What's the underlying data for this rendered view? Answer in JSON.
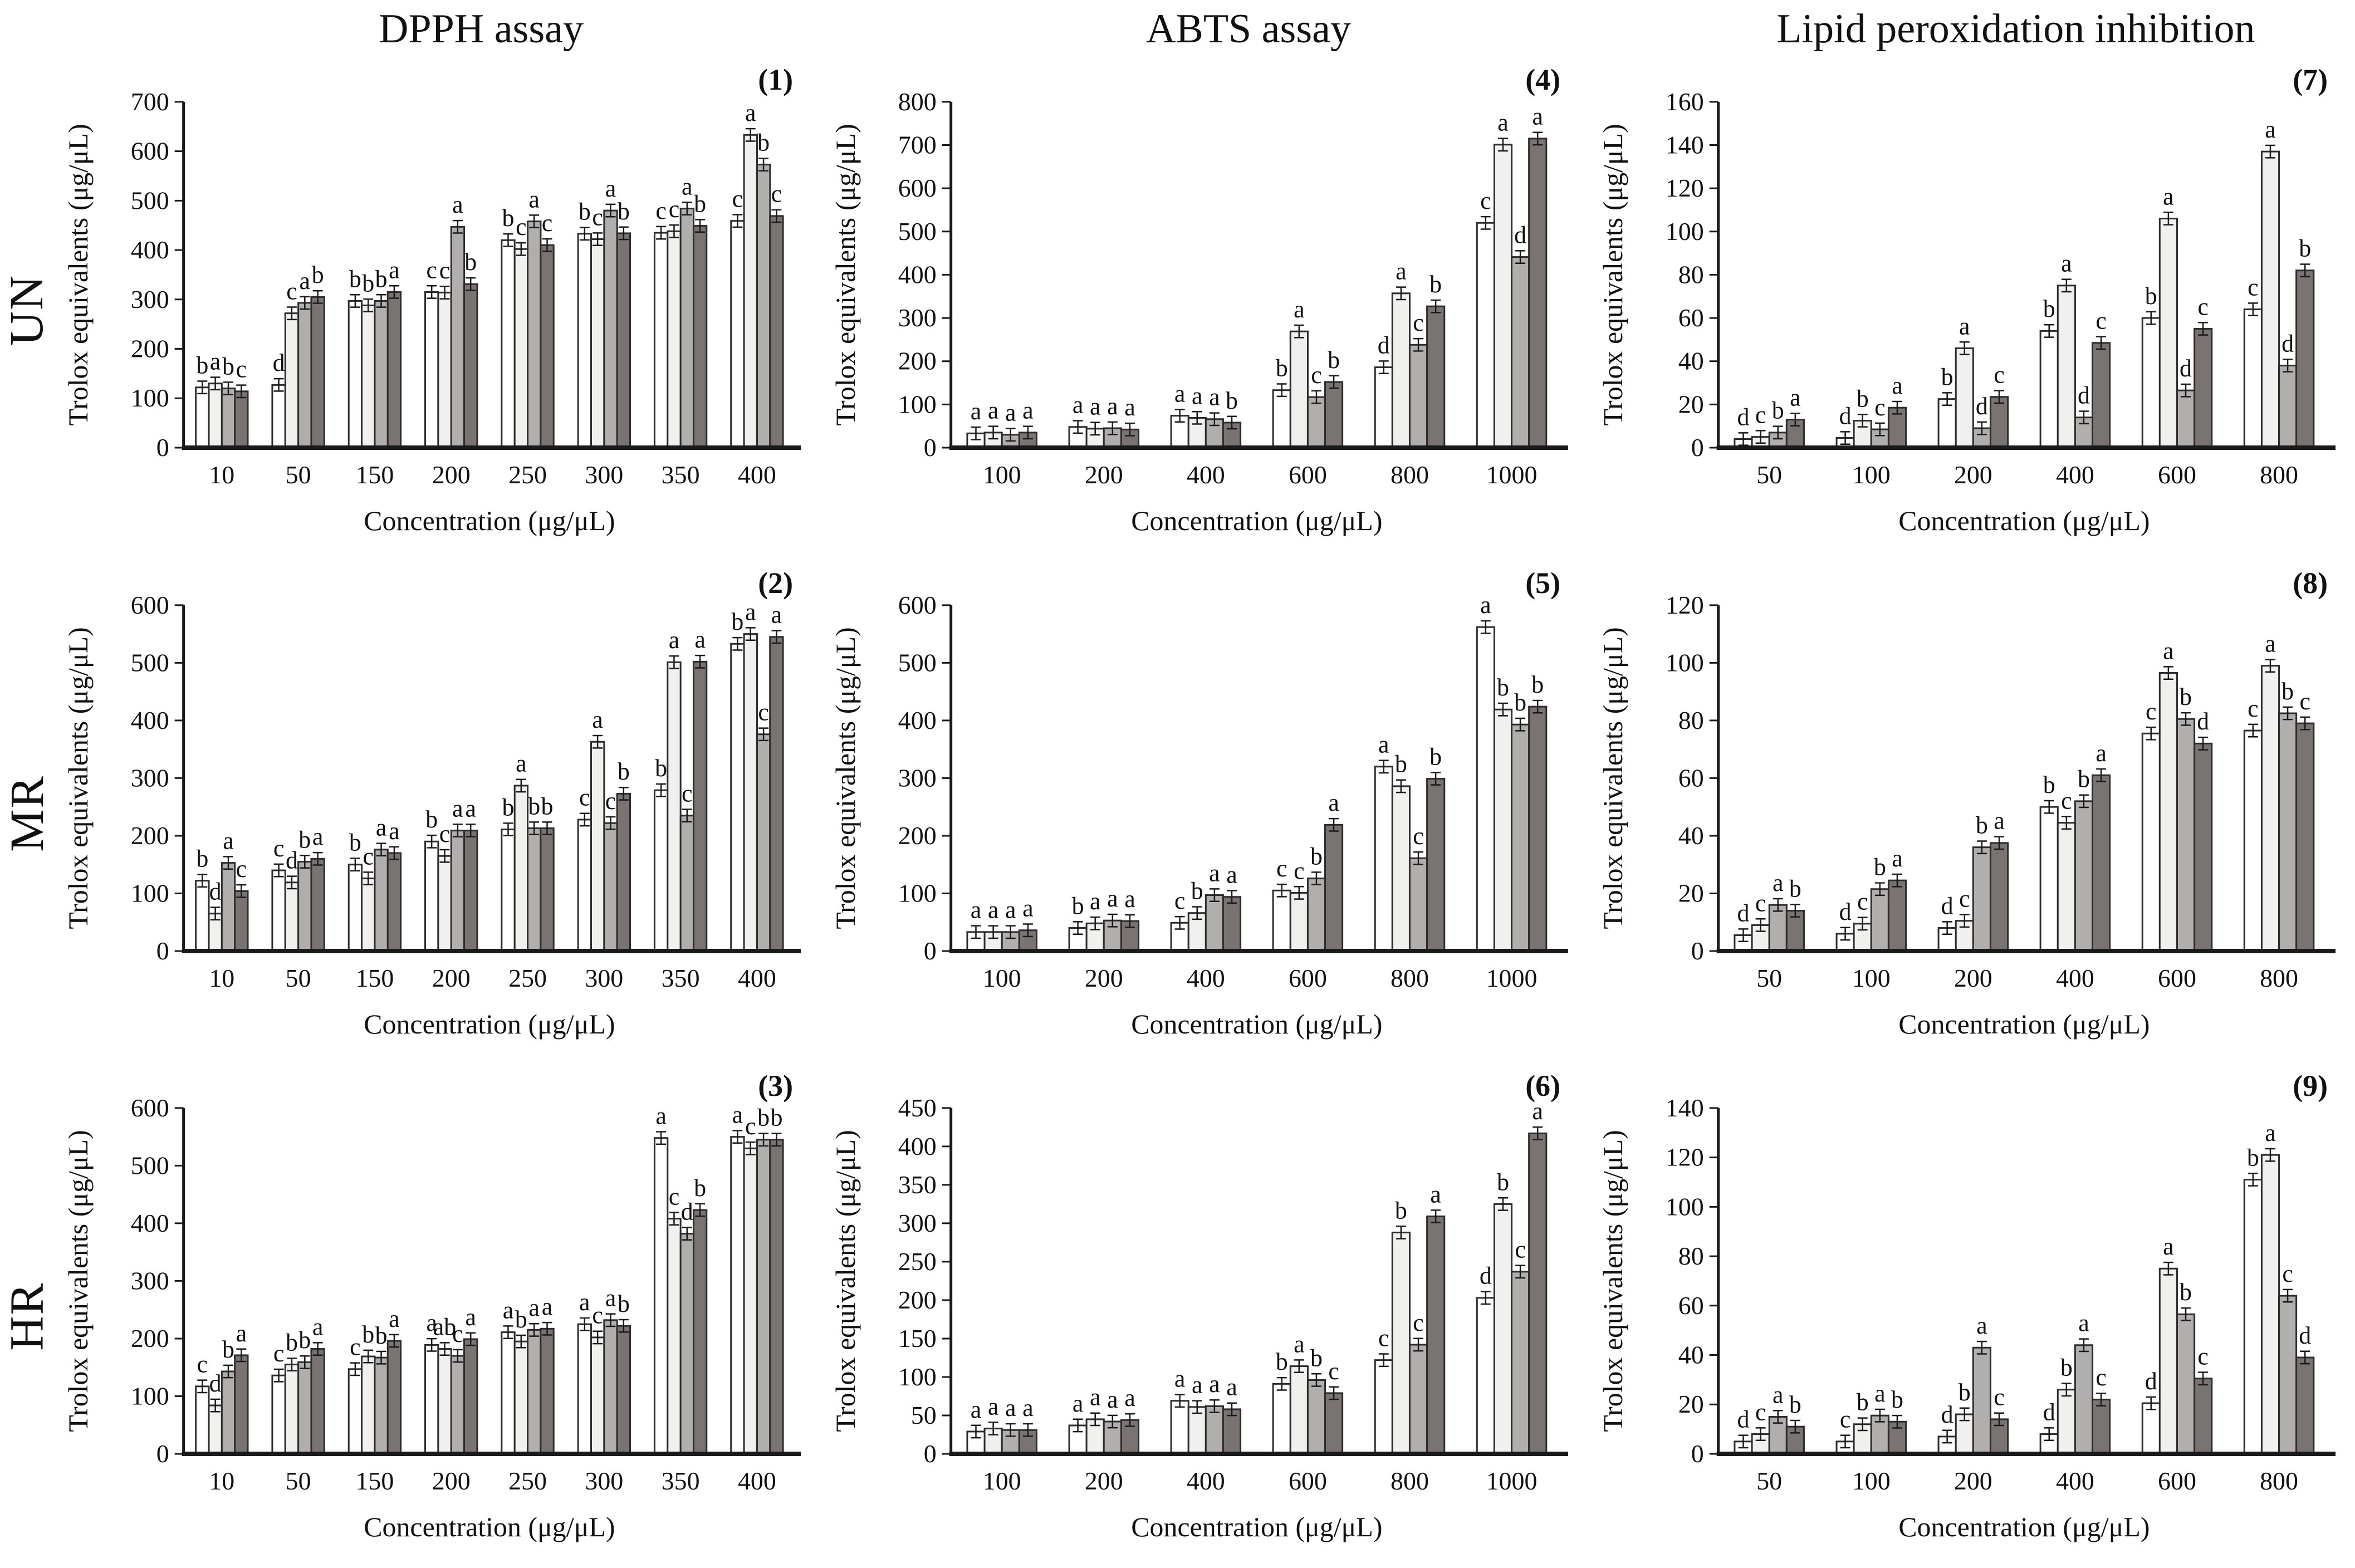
{
  "figure": {
    "column_titles": [
      "DPPH assay",
      "ABTS assay",
      "Lipid peroxidation inhibition"
    ],
    "row_labels": [
      "UN",
      "MR",
      "HR"
    ],
    "y_axis_label": "Trolox equivalents (μg/μL)",
    "x_axis_label": "Concentration (μg/μL)",
    "bar_colors": [
      "#ffffff",
      "#f0f0ee",
      "#b1aeae",
      "#797372"
    ],
    "bar_border_color": "#2f2c2b",
    "axis_color": "#1a1a1a",
    "text_color": "#111111"
  },
  "chart_data": [
    {
      "type": "bar",
      "panel": "(1)",
      "row": 0,
      "col": 0,
      "title": "DPPH assay UN",
      "ylim": [
        0,
        700
      ],
      "ystep": 100,
      "categories": [
        "10",
        "50",
        "150",
        "200",
        "250",
        "300",
        "350",
        "400"
      ],
      "groups": [
        {
          "values": [
            122,
            130,
            120,
            114
          ],
          "letters": [
            "b",
            "a",
            "b",
            "c"
          ]
        },
        {
          "values": [
            127,
            272,
            293,
            305
          ],
          "letters": [
            "d",
            "c",
            "a",
            "b"
          ]
        },
        {
          "values": [
            297,
            288,
            297,
            315
          ],
          "letters": [
            "b",
            "b",
            "b",
            "a"
          ]
        },
        {
          "values": [
            315,
            314,
            447,
            331
          ],
          "letters": [
            "c",
            "c",
            "a",
            "b"
          ]
        },
        {
          "values": [
            420,
            402,
            458,
            410
          ],
          "letters": [
            "b",
            "c",
            "a",
            "c"
          ]
        },
        {
          "values": [
            433,
            422,
            480,
            434
          ],
          "letters": [
            "b",
            "c",
            "a",
            "b"
          ]
        },
        {
          "values": [
            435,
            438,
            484,
            449
          ],
          "letters": [
            "c",
            "c",
            "a",
            "b"
          ]
        },
        {
          "values": [
            459,
            633,
            573,
            469
          ],
          "letters": [
            "c",
            "a",
            "b",
            "c"
          ]
        }
      ]
    },
    {
      "type": "bar",
      "panel": "(2)",
      "row": 1,
      "col": 0,
      "title": "DPPH assay MR",
      "ylim": [
        0,
        600
      ],
      "ystep": 100,
      "categories": [
        "10",
        "50",
        "150",
        "200",
        "250",
        "300",
        "350",
        "400"
      ],
      "groups": [
        {
          "values": [
            122,
            65,
            153,
            104
          ],
          "letters": [
            "b",
            "d",
            "a",
            "c"
          ]
        },
        {
          "values": [
            140,
            119,
            155,
            160
          ],
          "letters": [
            "c",
            "d",
            "b",
            "a"
          ]
        },
        {
          "values": [
            150,
            126,
            176,
            170
          ],
          "letters": [
            "b",
            "c",
            "a",
            "a"
          ]
        },
        {
          "values": [
            190,
            165,
            209,
            209
          ],
          "letters": [
            "b",
            "c",
            "a",
            "a"
          ]
        },
        {
          "values": [
            211,
            287,
            213,
            213
          ],
          "letters": [
            "b",
            "a",
            "b",
            "b"
          ]
        },
        {
          "values": [
            228,
            363,
            222,
            273
          ],
          "letters": [
            "c",
            "a",
            "c",
            "b"
          ]
        },
        {
          "values": [
            279,
            501,
            235,
            502
          ],
          "letters": [
            "b",
            "a",
            "c",
            "a"
          ]
        },
        {
          "values": [
            533,
            550,
            376,
            545
          ],
          "letters": [
            "b",
            "a",
            "c",
            "a"
          ]
        }
      ]
    },
    {
      "type": "bar",
      "panel": "(3)",
      "row": 2,
      "col": 0,
      "title": "DPPH assay HR",
      "ylim": [
        0,
        600
      ],
      "ystep": 100,
      "categories": [
        "10",
        "50",
        "150",
        "200",
        "250",
        "300",
        "350",
        "400"
      ],
      "groups": [
        {
          "values": [
            117,
            84,
            143,
            171
          ],
          "letters": [
            "c",
            "d",
            "b",
            "a"
          ]
        },
        {
          "values": [
            136,
            155,
            159,
            182
          ],
          "letters": [
            "c",
            "b",
            "b",
            "a"
          ]
        },
        {
          "values": [
            147,
            169,
            167,
            196
          ],
          "letters": [
            "c",
            "b",
            "b",
            "a"
          ]
        },
        {
          "values": [
            189,
            182,
            170,
            199
          ],
          "letters": [
            "a",
            "ab",
            "c",
            "a"
          ]
        },
        {
          "values": [
            211,
            195,
            215,
            217
          ],
          "letters": [
            "a",
            "b",
            "a",
            "a"
          ]
        },
        {
          "values": [
            225,
            202,
            232,
            222
          ],
          "letters": [
            "a",
            "c",
            "a",
            "b"
          ]
        },
        {
          "values": [
            548,
            408,
            382,
            423
          ],
          "letters": [
            "a",
            "c",
            "d",
            "b"
          ]
        },
        {
          "values": [
            550,
            530,
            545,
            545
          ],
          "letters": [
            "a",
            "c",
            "b",
            "b"
          ]
        }
      ]
    },
    {
      "type": "bar",
      "panel": "(4)",
      "row": 0,
      "col": 1,
      "title": "ABTS assay UN",
      "ylim": [
        0,
        800
      ],
      "ystep": 100,
      "categories": [
        "100",
        "200",
        "400",
        "600",
        "800",
        "1000"
      ],
      "groups": [
        {
          "values": [
            33,
            35,
            30,
            35
          ],
          "letters": [
            "a",
            "a",
            "a",
            "a"
          ]
        },
        {
          "values": [
            48,
            44,
            45,
            42
          ],
          "letters": [
            "a",
            "a",
            "a",
            "a"
          ]
        },
        {
          "values": [
            74,
            69,
            66,
            58
          ],
          "letters": [
            "a",
            "a",
            "a",
            "b"
          ]
        },
        {
          "values": [
            133,
            269,
            117,
            152
          ],
          "letters": [
            "b",
            "a",
            "c",
            "b"
          ]
        },
        {
          "values": [
            186,
            357,
            238,
            327
          ],
          "letters": [
            "d",
            "a",
            "c",
            "b"
          ]
        },
        {
          "values": [
            520,
            701,
            441,
            715
          ],
          "letters": [
            "c",
            "a",
            "d",
            "a"
          ]
        }
      ]
    },
    {
      "type": "bar",
      "panel": "(5)",
      "row": 1,
      "col": 1,
      "title": "ABTS assay MR",
      "ylim": [
        0,
        600
      ],
      "ystep": 100,
      "categories": [
        "100",
        "200",
        "400",
        "600",
        "800",
        "1000"
      ],
      "groups": [
        {
          "values": [
            33,
            33,
            33,
            36
          ],
          "letters": [
            "a",
            "a",
            "a",
            "a"
          ]
        },
        {
          "values": [
            40,
            48,
            53,
            52
          ],
          "letters": [
            "b",
            "a",
            "a",
            "a"
          ]
        },
        {
          "values": [
            49,
            66,
            97,
            94
          ],
          "letters": [
            "c",
            "b",
            "a",
            "a"
          ]
        },
        {
          "values": [
            105,
            101,
            126,
            219
          ],
          "letters": [
            "c",
            "c",
            "b",
            "a"
          ]
        },
        {
          "values": [
            320,
            286,
            161,
            299
          ],
          "letters": [
            "a",
            "b",
            "c",
            "b"
          ]
        },
        {
          "values": [
            562,
            419,
            393,
            424
          ],
          "letters": [
            "a",
            "b",
            "b",
            "b"
          ]
        }
      ]
    },
    {
      "type": "bar",
      "panel": "(6)",
      "row": 2,
      "col": 1,
      "title": "ABTS assay HR",
      "ylim": [
        0,
        450
      ],
      "ystep": 50,
      "categories": [
        "100",
        "200",
        "400",
        "600",
        "800",
        "1000"
      ],
      "groups": [
        {
          "values": [
            29,
            33,
            31,
            31
          ],
          "letters": [
            "a",
            "a",
            "a",
            "a"
          ]
        },
        {
          "values": [
            37,
            45,
            42,
            44
          ],
          "letters": [
            "a",
            "a",
            "a",
            "a"
          ]
        },
        {
          "values": [
            69,
            61,
            62,
            58
          ],
          "letters": [
            "a",
            "a",
            "a",
            "a"
          ]
        },
        {
          "values": [
            91,
            114,
            96,
            79
          ],
          "letters": [
            "b",
            "a",
            "b",
            "c"
          ]
        },
        {
          "values": [
            122,
            288,
            142,
            309
          ],
          "letters": [
            "c",
            "b",
            "c",
            "a"
          ]
        },
        {
          "values": [
            203,
            325,
            237,
            417
          ],
          "letters": [
            "d",
            "b",
            "c",
            "a"
          ]
        }
      ]
    },
    {
      "type": "bar",
      "panel": "(7)",
      "row": 0,
      "col": 2,
      "title": "Lipid peroxidation inhibition UN",
      "ylim": [
        0,
        160
      ],
      "ystep": 20,
      "categories": [
        "50",
        "100",
        "200",
        "400",
        "600",
        "800"
      ],
      "groups": [
        {
          "values": [
            4,
            5,
            7,
            13
          ],
          "letters": [
            "d",
            "c",
            "b",
            "a"
          ]
        },
        {
          "values": [
            4.5,
            12.5,
            8.5,
            18.5
          ],
          "letters": [
            "d",
            "b",
            "c",
            "a"
          ]
        },
        {
          "values": [
            22.5,
            46,
            9,
            23.5
          ],
          "letters": [
            "b",
            "a",
            "d",
            "c"
          ]
        },
        {
          "values": [
            54,
            75,
            14,
            48.5
          ],
          "letters": [
            "b",
            "a",
            "d",
            "c"
          ]
        },
        {
          "values": [
            60,
            106,
            26.5,
            55
          ],
          "letters": [
            "b",
            "a",
            "d",
            "c"
          ]
        },
        {
          "values": [
            64,
            137,
            38,
            82
          ],
          "letters": [
            "c",
            "a",
            "d",
            "b"
          ]
        }
      ]
    },
    {
      "type": "bar",
      "panel": "(8)",
      "row": 1,
      "col": 2,
      "title": "Lipid peroxidation inhibition MR",
      "ylim": [
        0,
        120
      ],
      "ystep": 20,
      "categories": [
        "50",
        "100",
        "200",
        "400",
        "600",
        "800"
      ],
      "groups": [
        {
          "values": [
            5.5,
            9,
            16,
            14
          ],
          "letters": [
            "d",
            "c",
            "a",
            "b"
          ]
        },
        {
          "values": [
            6,
            9.5,
            21.5,
            24.5
          ],
          "letters": [
            "d",
            "c",
            "b",
            "a"
          ]
        },
        {
          "values": [
            8,
            10.5,
            36,
            37.5
          ],
          "letters": [
            "d",
            "c",
            "b",
            "a"
          ]
        },
        {
          "values": [
            50,
            44.5,
            52,
            61
          ],
          "letters": [
            "b",
            "c",
            "b",
            "a"
          ]
        },
        {
          "values": [
            75.5,
            96.5,
            80.5,
            72
          ],
          "letters": [
            "c",
            "a",
            "b",
            "d"
          ]
        },
        {
          "values": [
            76.5,
            99,
            82.5,
            79
          ],
          "letters": [
            "c",
            "a",
            "b",
            "c"
          ]
        }
      ]
    },
    {
      "type": "bar",
      "panel": "(9)",
      "row": 2,
      "col": 2,
      "title": "Lipid peroxidation inhibition HR",
      "ylim": [
        0,
        140
      ],
      "ystep": 20,
      "categories": [
        "50",
        "100",
        "200",
        "400",
        "600",
        "800"
      ],
      "groups": [
        {
          "values": [
            5,
            8,
            15,
            11
          ],
          "letters": [
            "d",
            "c",
            "a",
            "b"
          ]
        },
        {
          "values": [
            5,
            12,
            15.5,
            13
          ],
          "letters": [
            "c",
            "b",
            "a",
            "b"
          ]
        },
        {
          "values": [
            7,
            16,
            43,
            14
          ],
          "letters": [
            "d",
            "b",
            "a",
            "c"
          ]
        },
        {
          "values": [
            8,
            26,
            44,
            22
          ],
          "letters": [
            "d",
            "b",
            "a",
            "c"
          ]
        },
        {
          "values": [
            20.5,
            75,
            56.5,
            30.5
          ],
          "letters": [
            "d",
            "a",
            "b",
            "c"
          ]
        },
        {
          "values": [
            111,
            121,
            64,
            39
          ],
          "letters": [
            "b",
            "a",
            "c",
            "d"
          ]
        }
      ]
    }
  ]
}
